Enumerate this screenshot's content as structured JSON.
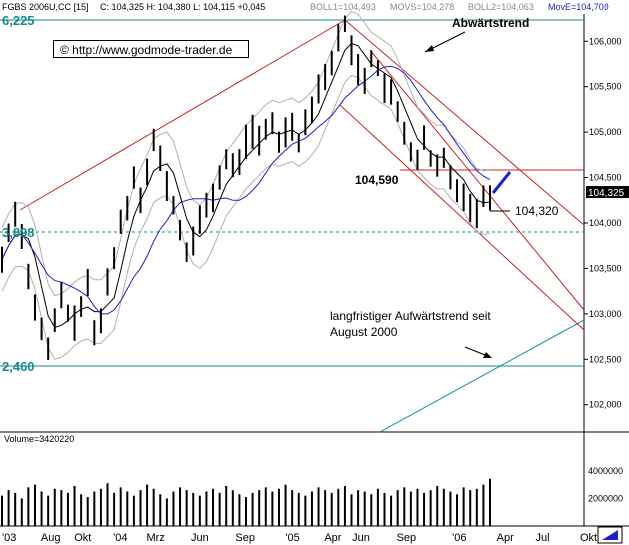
{
  "header": {
    "instrument": "FGBS 2006U,CC [15]",
    "ohlc": "C: 104,325 H: 104,380 L: 104,115 +0,045",
    "boll1": "BOLL1=104,493",
    "movs": "MOVS=104,278",
    "boll2": "BOLL2=104,063",
    "move": "MovE=104,70ϑ"
  },
  "copyright": "© http://www.godmode-trader.de",
  "annotations": {
    "downtrend": "Abwärtstrend",
    "level_104590": "104,590",
    "level_104320": "104,320",
    "longterm_line1": "langfristiger Aufwärtstrend seit",
    "longterm_line2": "August 2000",
    "last_price": "104,325"
  },
  "levels": {
    "top": "6,225",
    "mid": "3,898",
    "low": "2,460"
  },
  "chart_data": {
    "type": "line",
    "title": "FGBS 2006U,CC [15]",
    "price_axis": {
      "ylim": [
        101.7,
        106.3
      ],
      "ticks": [
        "106,000",
        "105,500",
        "105,000",
        "104,500",
        "104,000",
        "103,500",
        "103,000",
        "102,500",
        "102,000"
      ],
      "tick_values": [
        106.0,
        105.5,
        105.0,
        104.5,
        104.0,
        103.5,
        103.0,
        102.5,
        102.0
      ]
    },
    "x_ticks": [
      "'03",
      "Aug",
      "Okt",
      "'04",
      "Mrz",
      "Jun",
      "Sep",
      "'05",
      "Apr",
      "Jun",
      "Sep",
      "'06",
      "Apr",
      "Jul",
      "Okt"
    ],
    "x_tick_index": [
      0,
      7,
      13,
      20,
      26,
      34,
      42,
      51,
      58,
      63,
      71,
      81,
      89,
      96,
      104
    ],
    "horizontal_levels": [
      {
        "label": "6,225",
        "value": 106.225,
        "color": "#188a8a"
      },
      {
        "label": "3,898",
        "value": 103.898,
        "color": "#188a8a",
        "style": "dashed"
      },
      {
        "label": "2,460",
        "value": 102.46,
        "color": "#188a8a"
      },
      {
        "label": "104,590",
        "value": 104.59,
        "color": "#cc2222"
      }
    ],
    "closes": [
      103.6,
      103.9,
      104.1,
      103.9,
      103.4,
      103.1,
      102.8,
      102.6,
      102.9,
      103.2,
      103.0,
      102.9,
      103.1,
      103.3,
      102.8,
      102.9,
      103.4,
      103.6,
      104.0,
      104.2,
      104.5,
      104.3,
      104.6,
      104.9,
      104.7,
      104.4,
      104.2,
      103.9,
      103.7,
      103.8,
      104.0,
      104.2,
      104.3,
      104.5,
      104.7,
      104.6,
      104.7,
      104.9,
      105.0,
      104.9,
      105.0,
      105.1,
      104.9,
      105.0,
      105.1,
      104.9,
      105.1,
      105.3,
      105.5,
      105.6,
      105.8,
      106.0,
      106.2,
      105.9,
      105.7,
      105.6,
      105.8,
      105.7,
      105.5,
      105.4,
      105.2,
      105.0,
      104.8,
      104.7,
      104.9,
      104.7,
      104.6,
      104.7,
      104.5,
      104.4,
      104.3,
      104.2,
      104.1,
      104.3,
      104.325
    ],
    "volume": {
      "label": "Volume=3420220",
      "ylim": [
        0,
        5800000
      ],
      "ticks": [
        "4000000",
        "2000000"
      ],
      "tick_values": [
        4000000,
        2000000
      ],
      "values": [
        2200000,
        2600000,
        2400000,
        2000000,
        2800000,
        3000000,
        2500000,
        2200000,
        2700000,
        2600000,
        2400000,
        2900000,
        2300000,
        2100000,
        2500000,
        2700000,
        3100000,
        2400000,
        2800000,
        2500000,
        2200000,
        2600000,
        3000000,
        2700000,
        2300000,
        2000000,
        2500000,
        2800000,
        2600000,
        2400000,
        2200000,
        2500000,
        2700000,
        2400000,
        2900000,
        2600000,
        2300000,
        2100000,
        2400000,
        2600000,
        2800000,
        2500000,
        2700000,
        3000000,
        2600000,
        2400000,
        2200000,
        2500000,
        2800000,
        2600000,
        2400000,
        2700000,
        2900000,
        2300000,
        2600000,
        2500000,
        2300000,
        2700000,
        2400000,
        2200000,
        2600000,
        2800000,
        2500000,
        2700000,
        2400000,
        2600000,
        2900000,
        2700000,
        2500000,
        2300000,
        2800000,
        2600000,
        2700000,
        3000000,
        3420220
      ]
    }
  }
}
